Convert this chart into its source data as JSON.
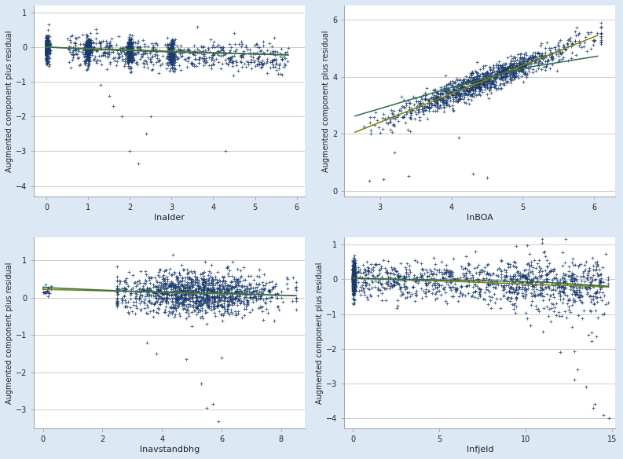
{
  "fig_bg_color": "#dce9f5",
  "plot_bg_color": "#ffffff",
  "dot_color": "#1a3a6b",
  "line_color_linear": "#808000",
  "line_color_lowess": "#2e6b4f",
  "dot_size": 5,
  "dot_alpha": 0.75,
  "subplots": [
    {
      "xlabel": "lnalder",
      "ylabel": "Augmented component plus residual",
      "xlim": [
        -0.3,
        6.2
      ],
      "ylim": [
        -4.3,
        1.2
      ],
      "xticks": [
        0,
        1,
        2,
        3,
        4,
        5,
        6
      ],
      "yticks": [
        -4,
        -3,
        -2,
        -1,
        0,
        1
      ],
      "n_points": 1500,
      "seed": 1
    },
    {
      "xlabel": "lnBOA",
      "ylabel": "Augmented component plus residual",
      "xlim": [
        2.5,
        6.3
      ],
      "ylim": [
        -0.2,
        6.5
      ],
      "xticks": [
        3,
        4,
        5,
        6
      ],
      "yticks": [
        0,
        2,
        4,
        6
      ],
      "n_points": 1200,
      "seed": 2
    },
    {
      "xlabel": "lnavstandbhg",
      "ylabel": "Augmented component plus residual",
      "xlim": [
        -0.3,
        8.8
      ],
      "ylim": [
        -3.5,
        1.6
      ],
      "xticks": [
        0,
        2,
        4,
        6,
        8
      ],
      "yticks": [
        -3,
        -2,
        -1,
        0,
        1
      ],
      "n_points": 1300,
      "seed": 3
    },
    {
      "xlabel": "lnfjeld",
      "ylabel": "Augmented component plus residual",
      "xlim": [
        -0.5,
        15.2
      ],
      "ylim": [
        -4.3,
        1.2
      ],
      "xticks": [
        0,
        5,
        10,
        15
      ],
      "yticks": [
        -4,
        -3,
        -2,
        -1,
        0,
        1
      ],
      "n_points": 1400,
      "seed": 4
    }
  ]
}
